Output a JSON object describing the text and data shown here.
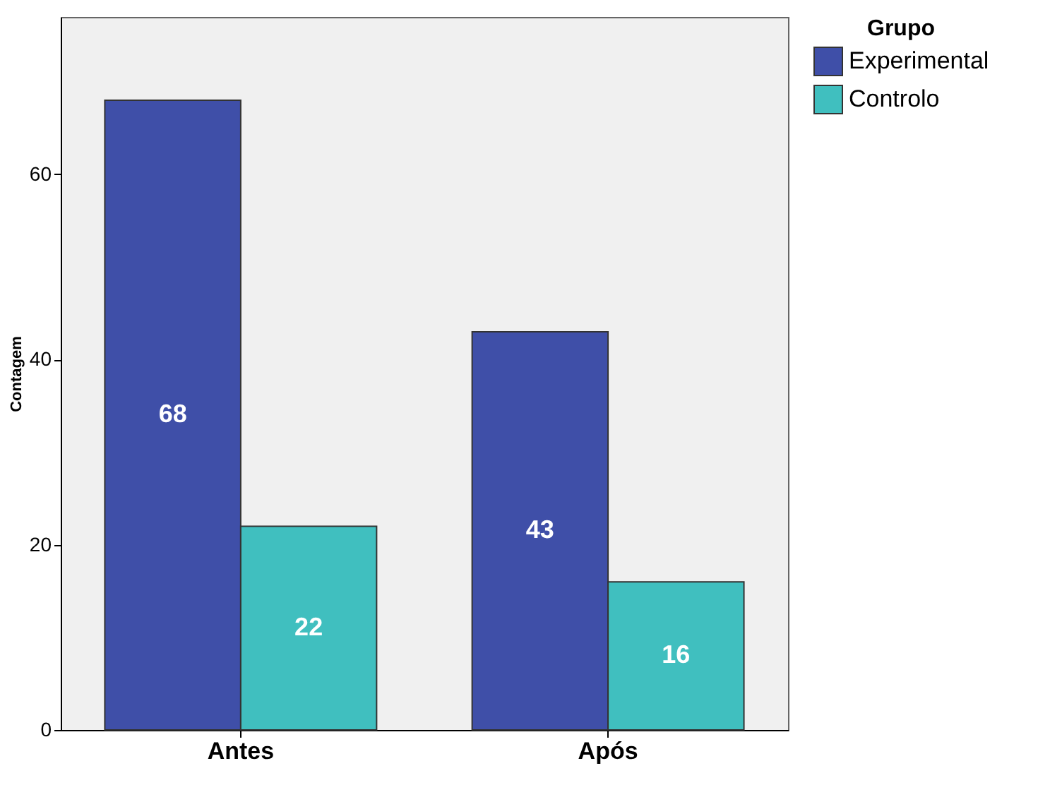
{
  "chart_data": {
    "type": "bar",
    "categories": [
      "Antes",
      "Após"
    ],
    "series": [
      {
        "name": "Experimental",
        "color": "#3f4fa8",
        "values": [
          68,
          43
        ]
      },
      {
        "name": "Controlo",
        "color": "#40bfbf",
        "values": [
          22,
          16
        ]
      }
    ],
    "ylabel": "Contagem",
    "legend_title": "Grupo",
    "ylim": [
      0,
      77
    ],
    "yticks": [
      0,
      20,
      40,
      60
    ],
    "grid": false,
    "legend": "top right",
    "data_labels": true
  }
}
